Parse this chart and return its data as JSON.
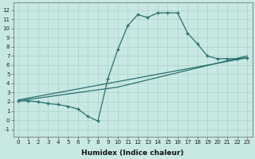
{
  "xlabel": "Humidex (Indice chaleur)",
  "xlim": [
    -0.5,
    23.5
  ],
  "ylim": [
    -1.8,
    12.8
  ],
  "xticks": [
    0,
    1,
    2,
    3,
    4,
    5,
    6,
    7,
    8,
    9,
    10,
    11,
    12,
    13,
    14,
    15,
    16,
    17,
    18,
    19,
    20,
    21,
    22,
    23
  ],
  "yticks": [
    -1,
    0,
    1,
    2,
    3,
    4,
    5,
    6,
    7,
    8,
    9,
    10,
    11,
    12
  ],
  "bg_color": "#c8e8e4",
  "grid_color": "#b0d4cc",
  "line_color": "#2a7070",
  "curve1_x": [
    0,
    1,
    2,
    3,
    4,
    5,
    6,
    7,
    8,
    9,
    10,
    11,
    12,
    13,
    14,
    15,
    16,
    17,
    18,
    19,
    20,
    21,
    22,
    23
  ],
  "curve1_y": [
    2.1,
    2.1,
    2.0,
    1.8,
    1.7,
    1.5,
    1.2,
    0.4,
    -0.1,
    4.5,
    7.7,
    10.3,
    11.5,
    11.2,
    11.7,
    11.7,
    11.7,
    9.5,
    8.3,
    7.0,
    6.7,
    6.7,
    6.7,
    6.8
  ],
  "curve2_x": [
    0,
    10,
    23
  ],
  "curve2_y": [
    2.1,
    3.6,
    7.0
  ],
  "curve3_x": [
    0,
    10,
    23
  ],
  "curve3_y": [
    2.2,
    4.2,
    6.8
  ],
  "marker": "+",
  "markersize": 3.5,
  "linewidth": 0.9,
  "tick_fontsize": 5,
  "label_fontsize": 6.5
}
